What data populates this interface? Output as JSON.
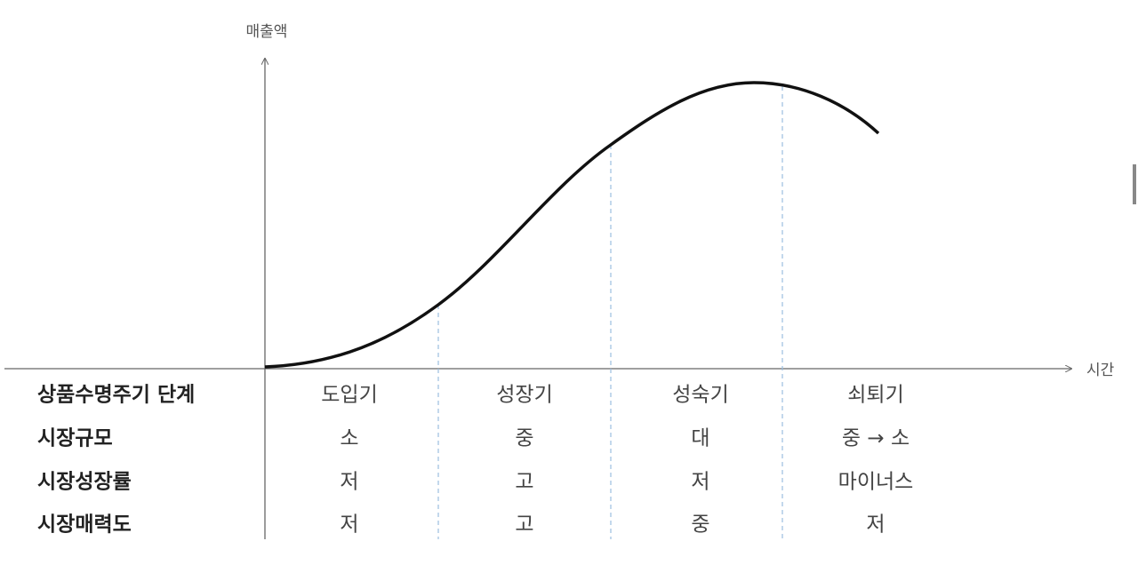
{
  "axes": {
    "y_label": "매출액",
    "x_label": "시간"
  },
  "table": {
    "rows": [
      [
        "상품수명주기 단계",
        "도입기",
        "성장기",
        "성숙기",
        "쇠퇴기"
      ],
      [
        "시장규모",
        "소",
        "중",
        "대",
        "중 → 소"
      ],
      [
        "시장성장률",
        "저",
        "고",
        "저",
        "마이너스"
      ],
      [
        "시장매력도",
        "저",
        "고",
        "중",
        "저"
      ]
    ]
  }
}
